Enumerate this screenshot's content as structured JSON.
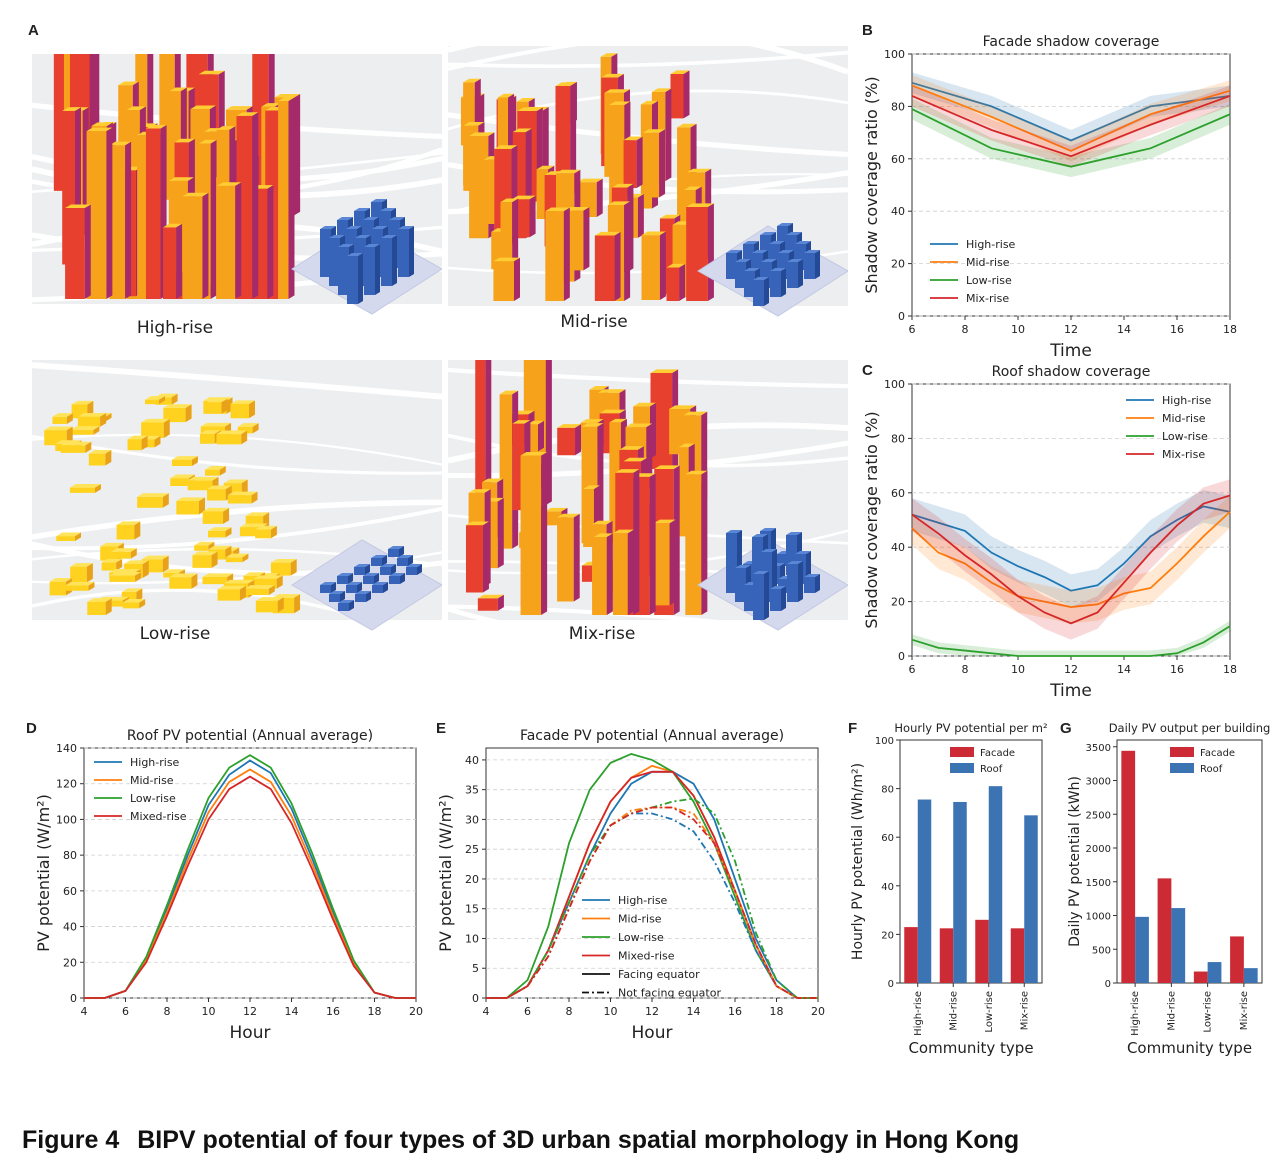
{
  "panel_letters": {
    "A": "A",
    "B": "B",
    "C": "C",
    "D": "D",
    "E": "E",
    "F": "F",
    "G": "G"
  },
  "scenes": [
    {
      "label": "High-rise",
      "kind": "high",
      "accent": "#f5a623"
    },
    {
      "label": "Mid-rise",
      "kind": "mid",
      "accent": "#f5a623"
    },
    {
      "label": "Low-rise",
      "kind": "low",
      "accent": "#ffd000"
    },
    {
      "label": "Mix-rise",
      "kind": "mix",
      "accent": "#f5a623"
    }
  ],
  "colors": {
    "High-rise": "#1f77b4",
    "Mid-rise": "#ff7f0e",
    "Low-rise": "#2ca02c",
    "Mix-rise": "#d62728",
    "Facade": "#cc2b35",
    "Roof": "#3b73b3",
    "Model": "#3366bb"
  },
  "caption": {
    "figure": "Figure 4",
    "title": "BIPV potential of four types of 3D urban spatial morphology in Hong Kong"
  },
  "chart_data": [
    {
      "id": "B",
      "type": "line",
      "title": "Facade shadow coverage",
      "xlabel": "Time",
      "ylabel": "Shadow coverage ratio (%)",
      "xlim": [
        6,
        18
      ],
      "ylim": [
        0,
        100
      ],
      "xticks": [
        6,
        8,
        10,
        12,
        14,
        16,
        18
      ],
      "yticks": [
        0,
        20,
        40,
        60,
        80,
        100
      ],
      "grid": "horizontal-dashed",
      "legend": "lower-left",
      "x": [
        6,
        9,
        12,
        15,
        18
      ],
      "series": [
        {
          "name": "High-rise",
          "values": [
            89,
            80,
            67,
            80,
            84
          ],
          "band": 4
        },
        {
          "name": "Mid-rise",
          "values": [
            88,
            76,
            63,
            77,
            86
          ],
          "band": 4
        },
        {
          "name": "Low-rise",
          "values": [
            79,
            64,
            57,
            64,
            77
          ],
          "band": 4
        },
        {
          "name": "Mix-rise",
          "values": [
            84,
            71,
            61,
            73,
            84
          ],
          "band": 4
        }
      ]
    },
    {
      "id": "C",
      "type": "line",
      "title": "Roof shadow coverage",
      "xlabel": "Time",
      "ylabel": "Shadow coverage ratio (%)",
      "xlim": [
        6,
        18
      ],
      "ylim": [
        0,
        100
      ],
      "xticks": [
        6,
        8,
        10,
        12,
        14,
        16,
        18
      ],
      "yticks": [
        0,
        20,
        40,
        60,
        80,
        100
      ],
      "grid": "horizontal-dashed",
      "legend": "upper-right",
      "x": [
        6,
        7,
        8,
        9,
        10,
        11,
        12,
        13,
        14,
        15,
        16,
        17,
        18
      ],
      "series": [
        {
          "name": "High-rise",
          "values": [
            52,
            49,
            46,
            38,
            33,
            29,
            24,
            26,
            34,
            44,
            50,
            55,
            53
          ],
          "band": 6
        },
        {
          "name": "Mid-rise",
          "values": [
            47,
            38,
            34,
            27,
            22,
            20,
            18,
            19,
            23,
            25,
            34,
            44,
            53
          ],
          "band": 6
        },
        {
          "name": "Low-rise",
          "values": [
            6,
            3,
            2,
            1,
            0,
            0,
            0,
            0,
            0,
            0,
            1,
            5,
            11
          ],
          "band": 2
        },
        {
          "name": "Mix-rise",
          "values": [
            52,
            45,
            37,
            30,
            22,
            16,
            12,
            16,
            27,
            38,
            48,
            56,
            59
          ],
          "band": 6
        }
      ]
    },
    {
      "id": "D",
      "type": "line",
      "title": "Roof PV potential (Annual average)",
      "xlabel": "Hour",
      "ylabel": "PV potential (W/m²)",
      "xlim": [
        4,
        20
      ],
      "ylim": [
        0,
        140
      ],
      "xticks": [
        4,
        6,
        8,
        10,
        12,
        14,
        16,
        18,
        20
      ],
      "yticks": [
        0,
        20,
        40,
        60,
        80,
        100,
        120,
        140
      ],
      "grid": "horizontal-dashed",
      "legend": "upper-left",
      "x": [
        4,
        5,
        6,
        7,
        8,
        9,
        10,
        11,
        12,
        13,
        14,
        15,
        16,
        17,
        18,
        19,
        20
      ],
      "series": [
        {
          "name": "High-rise",
          "values": [
            0,
            0,
            4,
            22,
            50,
            80,
            108,
            125,
            133,
            126,
            106,
            78,
            48,
            20,
            3,
            0,
            0
          ]
        },
        {
          "name": "Mid-rise",
          "values": [
            0,
            0,
            4,
            21,
            48,
            77,
            104,
            121,
            128,
            121,
            102,
            75,
            46,
            19,
            3,
            0,
            0
          ]
        },
        {
          "name": "Low-rise",
          "values": [
            0,
            0,
            4,
            23,
            52,
            83,
            112,
            129,
            136,
            129,
            109,
            81,
            50,
            21,
            3,
            0,
            0
          ]
        },
        {
          "name": "Mixed-rise",
          "values": [
            0,
            0,
            4,
            20,
            46,
            74,
            100,
            117,
            124,
            117,
            98,
            72,
            44,
            18,
            3,
            0,
            0
          ]
        }
      ]
    },
    {
      "id": "E",
      "type": "line",
      "title": "Facade PV potential (Annual average)",
      "xlabel": "Hour",
      "ylabel": "PV potential (W/m²)",
      "xlim": [
        4,
        20
      ],
      "ylim": [
        0,
        42
      ],
      "xticks": [
        4,
        6,
        8,
        10,
        12,
        14,
        16,
        18,
        20
      ],
      "yticks": [
        0,
        5,
        10,
        15,
        20,
        25,
        30,
        35,
        40
      ],
      "grid": "horizontal-dashed",
      "legend": "lower-center",
      "x": [
        4,
        5,
        6,
        7,
        8,
        9,
        10,
        11,
        12,
        13,
        14,
        15,
        16,
        17,
        18,
        19,
        20
      ],
      "series": [
        {
          "name": "High-rise",
          "style": "solid",
          "values": [
            0,
            0,
            2,
            8,
            16,
            24,
            31,
            36,
            38,
            38,
            36,
            30,
            20,
            10,
            3,
            0,
            0
          ]
        },
        {
          "name": "Mid-rise",
          "style": "solid",
          "values": [
            0,
            0,
            2,
            8,
            17,
            26,
            33,
            37,
            39,
            38,
            34,
            27,
            18,
            9,
            2,
            0,
            0
          ]
        },
        {
          "name": "Low-rise",
          "style": "solid",
          "values": [
            0,
            0,
            3,
            12,
            26,
            35,
            39.5,
            41,
            40,
            38,
            33,
            26,
            17,
            8,
            2,
            0,
            0
          ]
        },
        {
          "name": "Mixed-rise",
          "style": "solid",
          "values": [
            0,
            0,
            2,
            8,
            17,
            26,
            33,
            37,
            38,
            38,
            34,
            27,
            18,
            9,
            2,
            0,
            0
          ]
        },
        {
          "name": "High-rise",
          "style": "dashdot",
          "values": [
            0,
            0,
            2,
            7,
            15,
            23,
            29,
            31,
            31,
            30,
            28,
            23,
            16,
            8,
            2,
            0,
            0
          ]
        },
        {
          "name": "Mid-rise",
          "style": "dashdot",
          "values": [
            0,
            0,
            2,
            7,
            15,
            23,
            29,
            31.5,
            32,
            32,
            31,
            26,
            18,
            9,
            2,
            0,
            0
          ]
        },
        {
          "name": "Low-rise",
          "style": "dashdot",
          "values": [
            0,
            0,
            2,
            8,
            16,
            24,
            29,
            31,
            32,
            33,
            33.5,
            31,
            23,
            11,
            3,
            0,
            0
          ]
        },
        {
          "name": "Mixed-rise",
          "style": "dashdot",
          "values": [
            0,
            0,
            2,
            7,
            15,
            23,
            29,
            31,
            32,
            32,
            30,
            26,
            18,
            9,
            2,
            0,
            0
          ]
        }
      ],
      "legend_entries": [
        "High-rise",
        "Mid-rise",
        "Low-rise",
        "Mixed-rise",
        "Facing equator",
        "Not facing equator"
      ]
    },
    {
      "id": "F",
      "type": "bar",
      "title": "Hourly PV potential per m²",
      "xlabel": "Community type",
      "ylabel": "Hourly PV potential (Wh/m²)",
      "categories": [
        "High-rise",
        "Mid-rise",
        "Low-rise",
        "Mix-rise"
      ],
      "ylim": [
        0,
        100
      ],
      "yticks": [
        0,
        20,
        40,
        60,
        80,
        100
      ],
      "legend": "upper-right",
      "series": [
        {
          "name": "Facade",
          "values": [
            23,
            22.5,
            26,
            22.5
          ]
        },
        {
          "name": "Roof",
          "values": [
            75.5,
            74.5,
            81,
            69
          ]
        }
      ]
    },
    {
      "id": "G",
      "type": "bar",
      "title": "Daily PV output per building",
      "xlabel": "Community type",
      "ylabel": "Daily PV potential (kWh)",
      "categories": [
        "High-rise",
        "Mid-rise",
        "Low-rise",
        "Mix-rise"
      ],
      "ylim": [
        0,
        3600
      ],
      "yticks": [
        0,
        500,
        1000,
        1500,
        2000,
        2500,
        3000,
        3500
      ],
      "legend": "upper-right",
      "series": [
        {
          "name": "Facade",
          "values": [
            3440,
            1550,
            170,
            690
          ]
        },
        {
          "name": "Roof",
          "values": [
            980,
            1110,
            310,
            220
          ]
        }
      ]
    }
  ]
}
